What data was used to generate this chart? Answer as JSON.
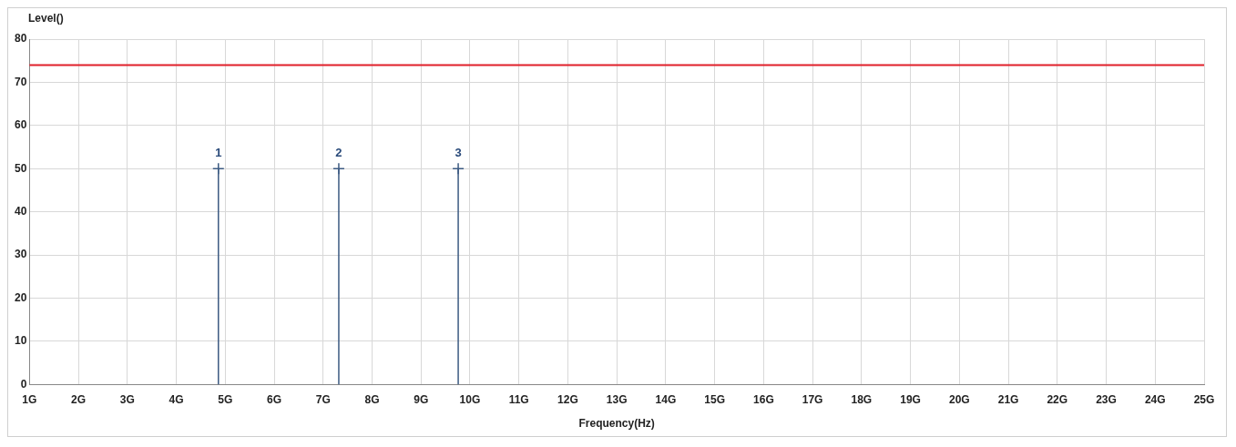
{
  "chart_data": {
    "type": "lollipop",
    "ylabel": "Level()",
    "xlabel": "Frequency(Hz)",
    "x": [
      4.86,
      7.32,
      9.76
    ],
    "series": [
      {
        "color": "#3c5a82",
        "values": [
          50,
          50,
          50
        ]
      }
    ],
    "annotations": [
      {
        "text": "1",
        "x": 4.86,
        "y": 50
      },
      {
        "text": "2",
        "x": 7.32,
        "y": 50
      },
      {
        "text": "3",
        "x": 9.76,
        "y": 50
      }
    ],
    "xlim": [
      1,
      25
    ],
    "xticks": [
      {
        "value": 1,
        "label": "1G"
      },
      {
        "value": 2,
        "label": "2G"
      },
      {
        "value": 3,
        "label": "3G"
      },
      {
        "value": 4,
        "label": "4G"
      },
      {
        "value": 5,
        "label": "5G"
      },
      {
        "value": 6,
        "label": "6G"
      },
      {
        "value": 7,
        "label": "7G"
      },
      {
        "value": 8,
        "label": "8G"
      },
      {
        "value": 9,
        "label": "9G"
      },
      {
        "value": 10,
        "label": "10G"
      },
      {
        "value": 11,
        "label": "11G"
      },
      {
        "value": 12,
        "label": "12G"
      },
      {
        "value": 13,
        "label": "13G"
      },
      {
        "value": 14,
        "label": "14G"
      },
      {
        "value": 15,
        "label": "15G"
      },
      {
        "value": 16,
        "label": "16G"
      },
      {
        "value": 17,
        "label": "17G"
      },
      {
        "value": 18,
        "label": "18G"
      },
      {
        "value": 19,
        "label": "19G"
      },
      {
        "value": 20,
        "label": "20G"
      },
      {
        "value": 21,
        "label": "21G"
      },
      {
        "value": 22,
        "label": "22G"
      },
      {
        "value": 23,
        "label": "23G"
      },
      {
        "value": 24,
        "label": "24G"
      },
      {
        "value": 25,
        "label": "25G"
      }
    ],
    "ylim": [
      0,
      80
    ],
    "yticks": [
      0,
      10,
      20,
      30,
      40,
      50,
      60,
      70,
      80
    ],
    "ref_lines": [
      {
        "axis": "y",
        "value": 74,
        "color": "#e0202a",
        "line_style": "solid"
      }
    ],
    "grid": true,
    "marker": "cross",
    "legend": false
  }
}
